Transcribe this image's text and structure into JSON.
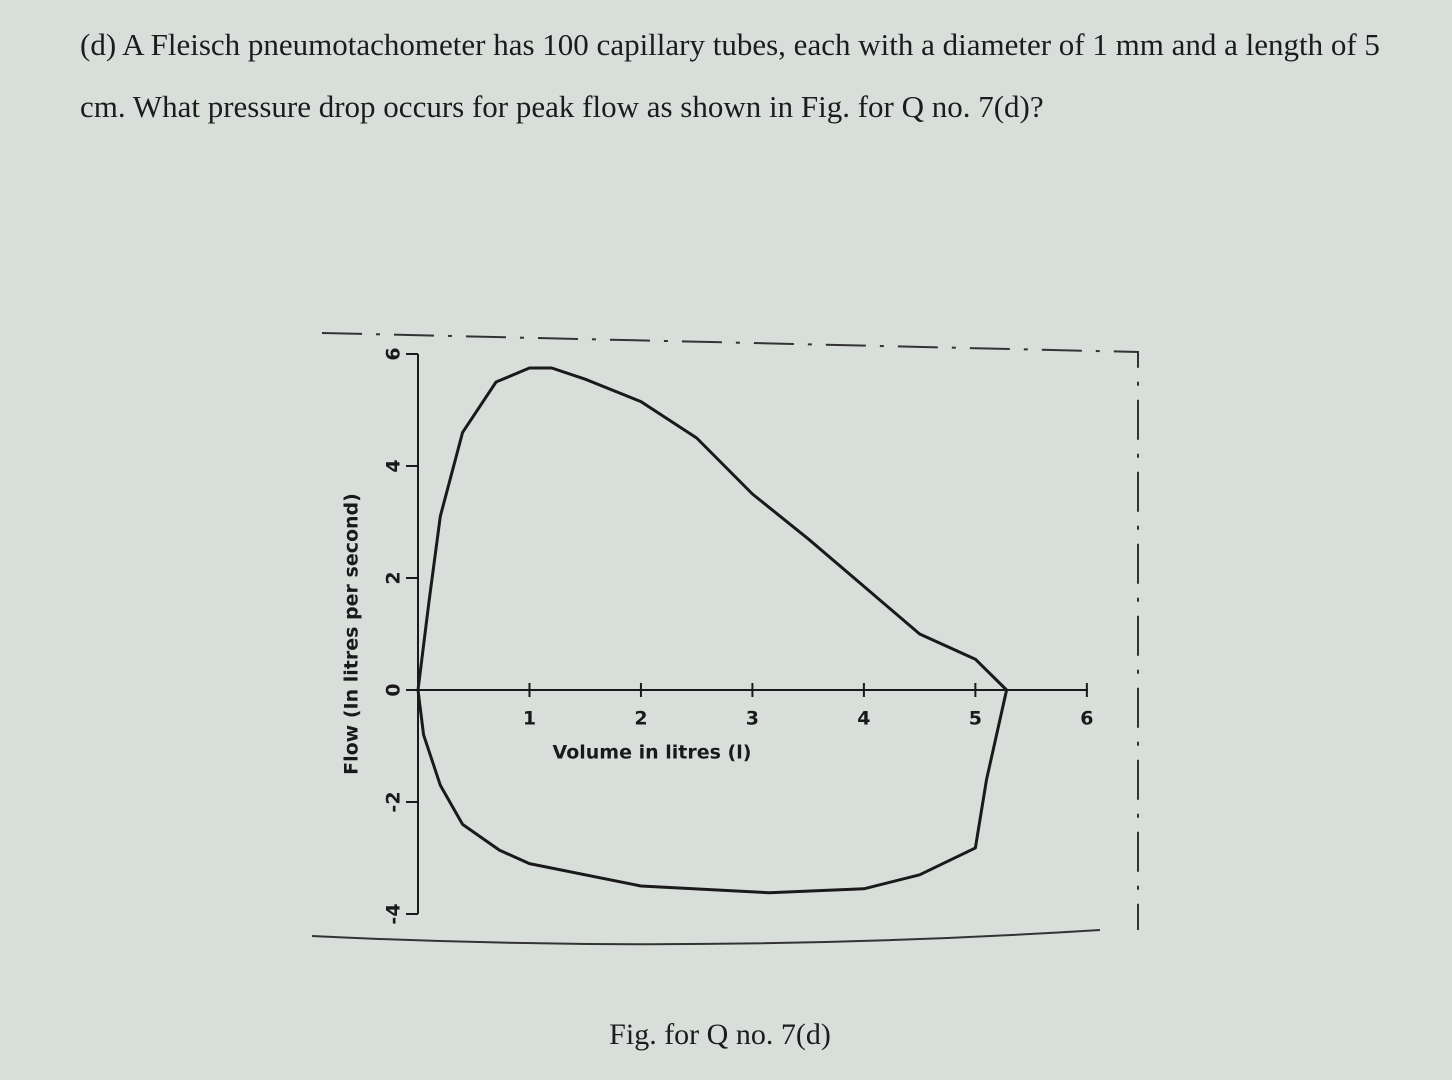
{
  "question": {
    "text": "(d) A Fleisch pneumotachometer has 100 capillary tubes, each with a diameter of 1 mm and a length of 5 cm. What pressure drop occurs for peak flow as shown in Fig. for Q no. 7(d)?"
  },
  "chart_data": {
    "type": "line",
    "xlabel": "Volume in litres (l)",
    "ylabel": "Flow (In litres per second)",
    "x": [
      0,
      0.1,
      0.2,
      0.4,
      0.7,
      1.0,
      1.2,
      1.5,
      2.0,
      2.5,
      3.0,
      3.5,
      4.0,
      4.5,
      5.0,
      5.28,
      5.1,
      5.0,
      4.5,
      4.0,
      3.15,
      2.0,
      1.0,
      0.73,
      0.4,
      0.2,
      0.05,
      0
    ],
    "series": [
      {
        "color": "#1a1a1a",
        "values": [
          0,
          1.6,
          3.1,
          4.6,
          5.5,
          5.75,
          5.75,
          5.55,
          5.15,
          4.5,
          3.5,
          2.7,
          1.85,
          1.0,
          0.55,
          0,
          -1.6,
          -2.82,
          -3.3,
          -3.55,
          -3.62,
          -3.5,
          -3.1,
          -2.86,
          -2.4,
          -1.7,
          -0.8,
          0
        ]
      }
    ],
    "xlim": [
      0,
      6.1
    ],
    "xticks": [
      1,
      2,
      3,
      4,
      5,
      6
    ],
    "ylim": [
      -4,
      6
    ],
    "yticks": [
      -4,
      -2,
      0,
      2,
      4,
      6
    ]
  },
  "caption": "Fig. for Q no. 7(d)"
}
